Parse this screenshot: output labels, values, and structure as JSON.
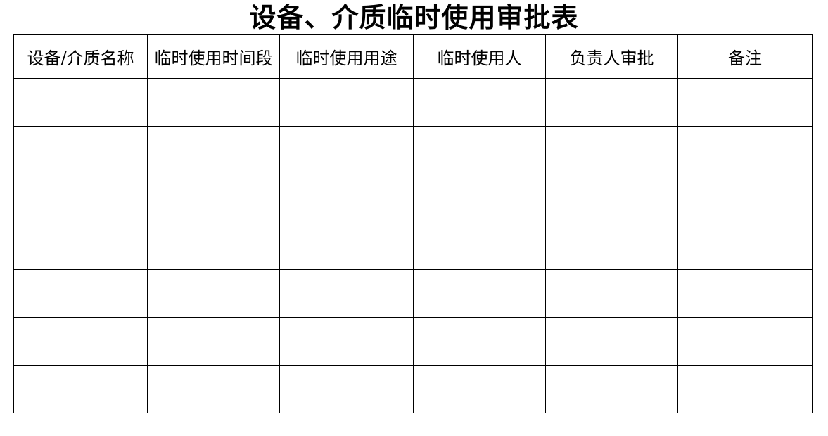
{
  "document": {
    "title": "设备、介质临时使用审批表"
  },
  "table": {
    "columns": [
      {
        "key": "device_media_name",
        "label": "设备/介质名称"
      },
      {
        "key": "usage_period",
        "label": "临时使用时间段"
      },
      {
        "key": "usage_purpose",
        "label": "临时使用用途"
      },
      {
        "key": "temporary_user",
        "label": "临时使用人"
      },
      {
        "key": "approver_approval",
        "label": "负责人审批"
      },
      {
        "key": "remarks",
        "label": "备注"
      }
    ],
    "body_row_count": 7,
    "body_cell_value": ""
  },
  "colors": {
    "background": "#ffffff",
    "border": "#000000",
    "text": "#000000"
  }
}
